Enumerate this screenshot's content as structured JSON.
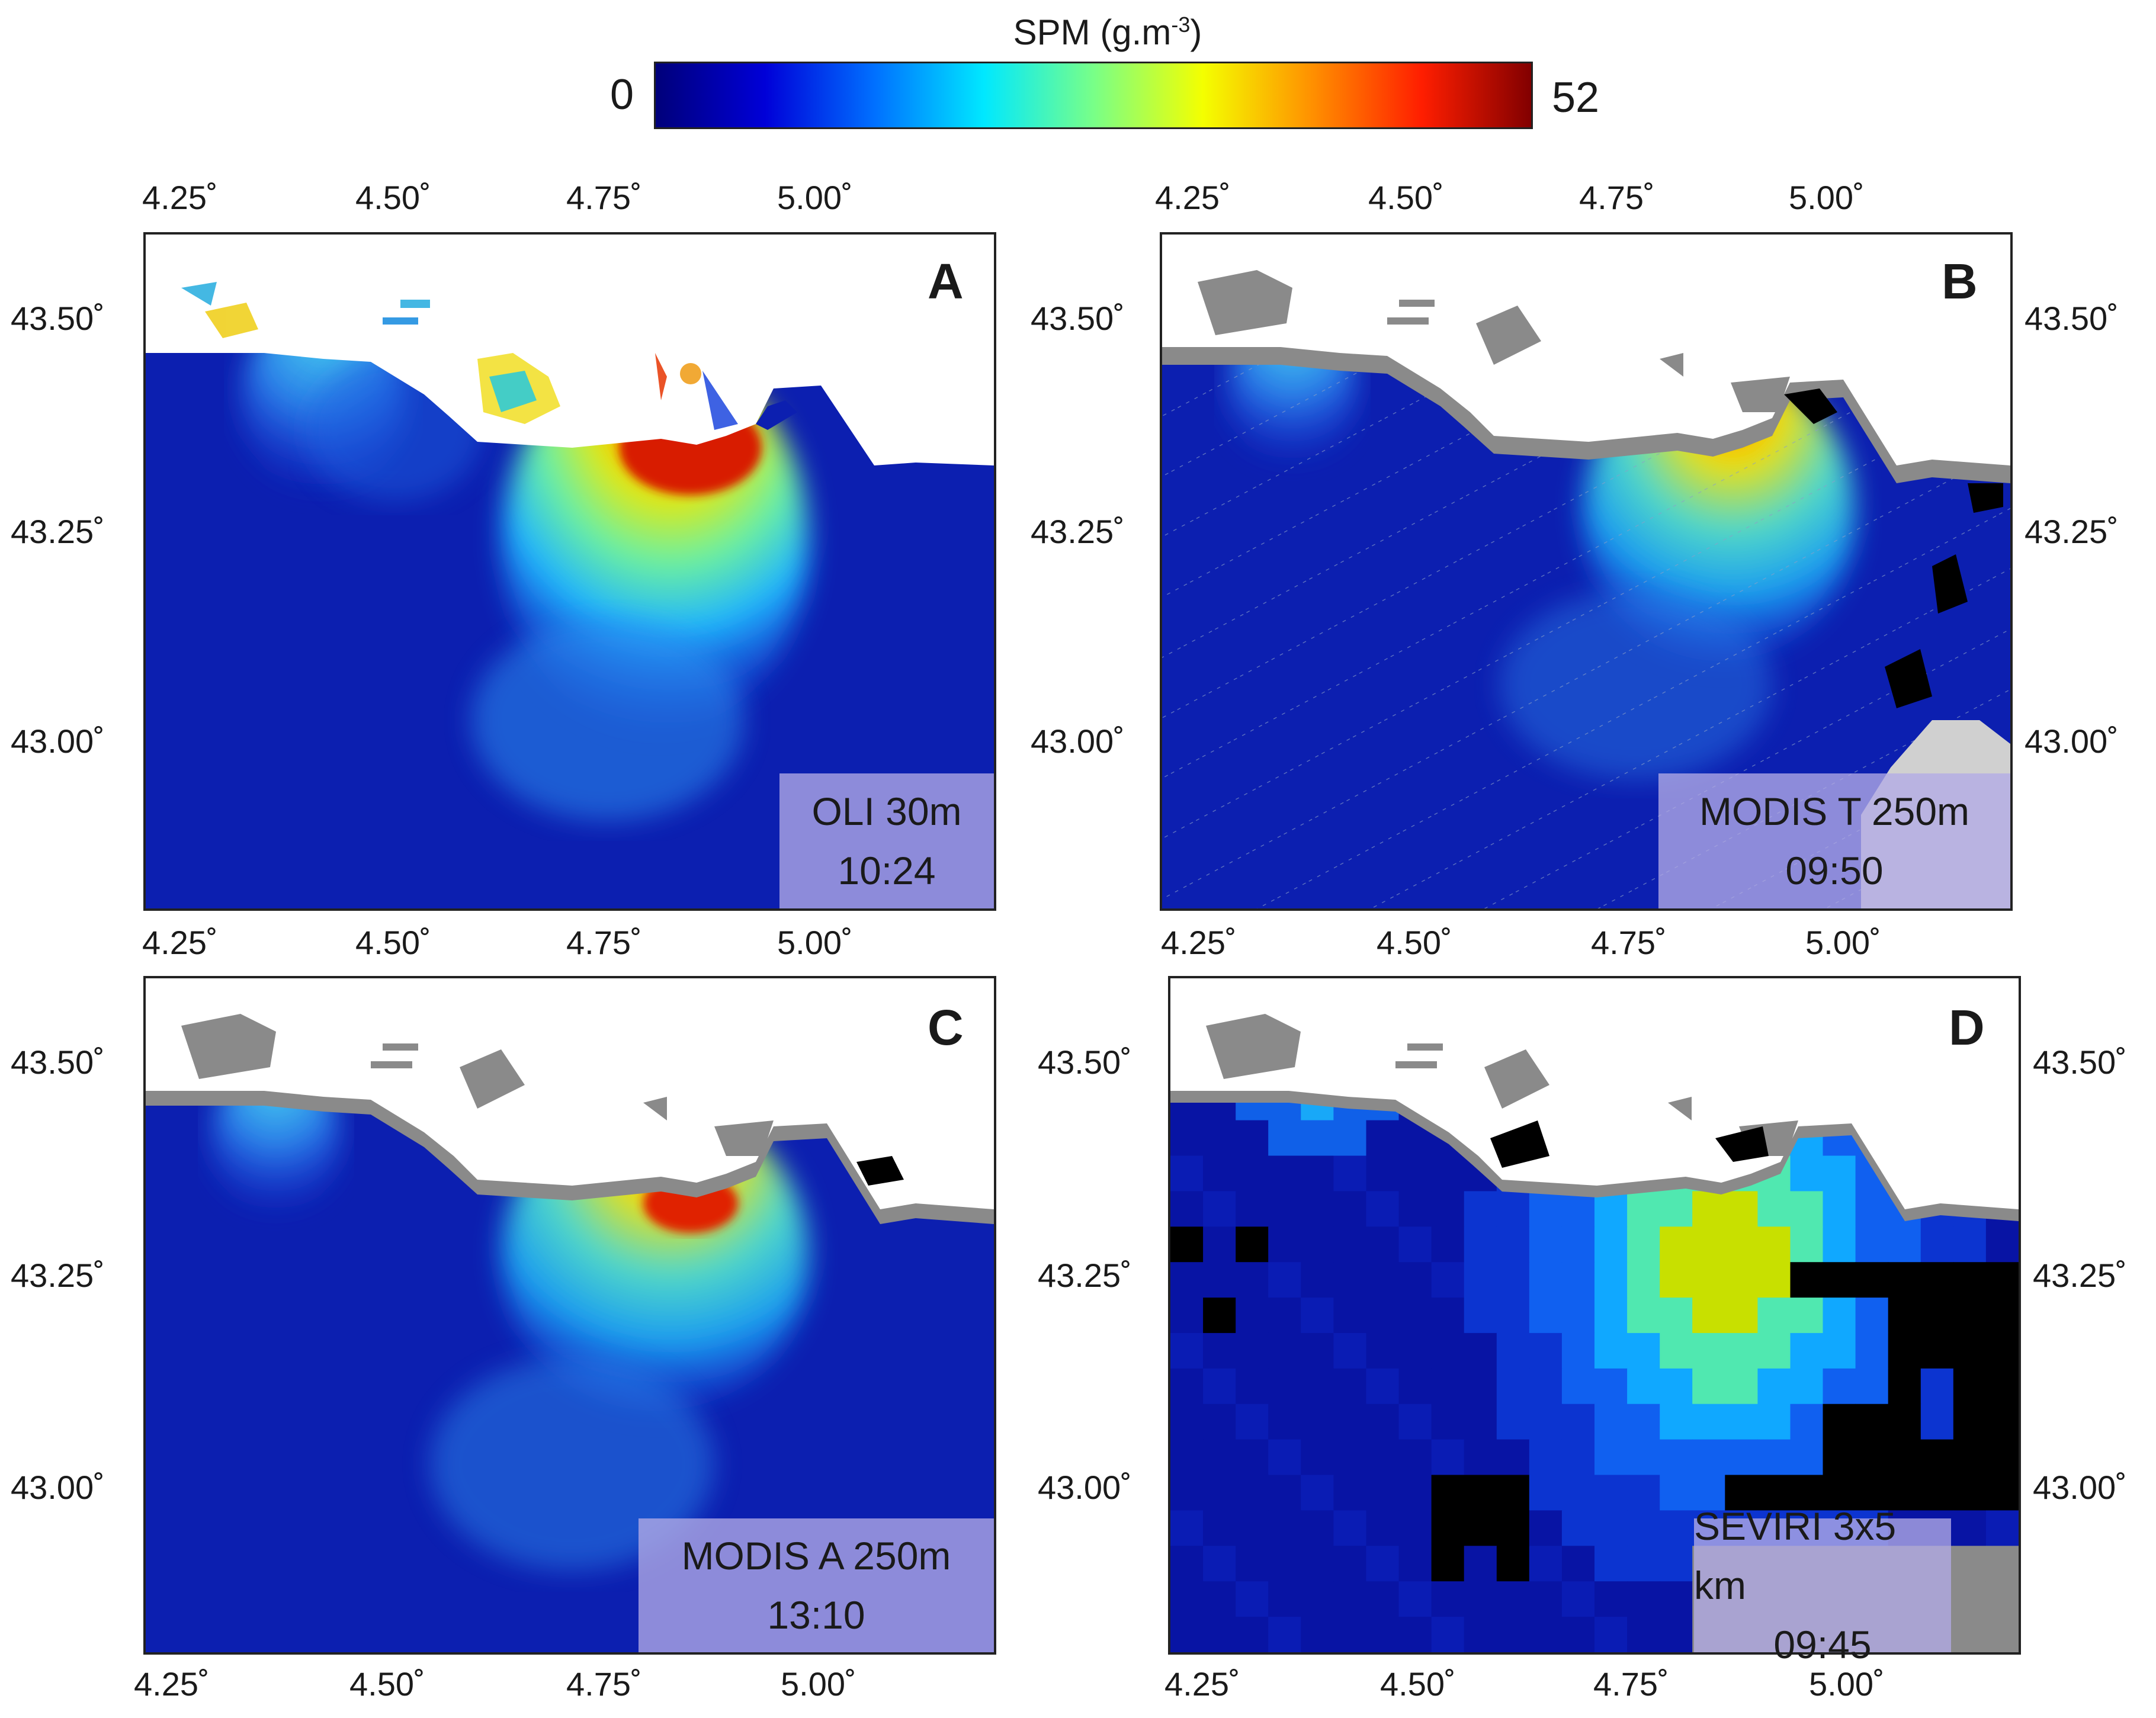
{
  "colorbar": {
    "title": "SPM (g.m",
    "title_superscript": "-3",
    "title_suffix": ")",
    "min": "0",
    "max": "52",
    "colors": [
      "#00007a",
      "#0000d8",
      "#0070ff",
      "#00e8ff",
      "#78ff88",
      "#f4ff00",
      "#ff9000",
      "#ff1e00",
      "#820000"
    ]
  },
  "axes": {
    "longitude_ticks": [
      "4.25˚",
      "4.50˚",
      "4.75˚",
      "5.00˚"
    ],
    "latitude_ticks": [
      "43.50˚",
      "43.25˚",
      "43.00˚"
    ]
  },
  "panels": [
    {
      "letter": "A",
      "sensor": "OLI 30m",
      "time": "10:24",
      "land_color": "multicolor"
    },
    {
      "letter": "B",
      "sensor": "MODIS T 250m",
      "time": "09:50",
      "land_color": "#808080"
    },
    {
      "letter": "C",
      "sensor": "MODIS A 250m",
      "time": "13:10",
      "land_color": "#808080"
    },
    {
      "letter": "D",
      "sensor": "SEVIRI 3x5 km",
      "time": "09:45",
      "land_color": "#808080"
    }
  ],
  "colors": {
    "sea": "#0a1ca8",
    "land": "#ffffff",
    "coast_gray": "#8a8a8a",
    "no_data": "#000000",
    "label_box": "#b2aae6"
  }
}
